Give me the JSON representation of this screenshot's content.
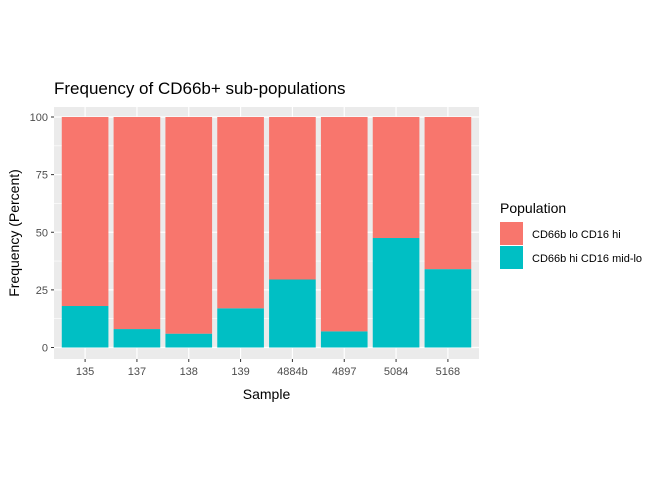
{
  "chart_data": {
    "type": "bar",
    "stacked": true,
    "title": "Frequency of CD66b+ sub-populations",
    "xlabel": "Sample",
    "ylabel": "Frequency (Percent)",
    "ylim": [
      0,
      100
    ],
    "yticks": [
      0,
      25,
      50,
      75,
      100
    ],
    "ytick_labels": [
      "0",
      "25",
      "50",
      "75",
      "100"
    ],
    "grid": true,
    "legend_position": "right",
    "legend_title": "Population",
    "categories": [
      "135",
      "137",
      "138",
      "139",
      "4884b",
      "4897",
      "5084",
      "5168"
    ],
    "series": [
      {
        "name": "CD66b lo CD16 hi",
        "color": "#F8766D",
        "values": [
          82,
          92,
          94,
          83,
          70.5,
          93,
          52.5,
          66
        ]
      },
      {
        "name": "CD66b hi CD16 mid-lo",
        "color": "#00BFC4",
        "values": [
          18,
          8,
          6,
          17,
          29.5,
          7,
          47.5,
          34
        ]
      }
    ],
    "panel_background": "#EBEBEB",
    "grid_color": "#FFFFFF"
  }
}
